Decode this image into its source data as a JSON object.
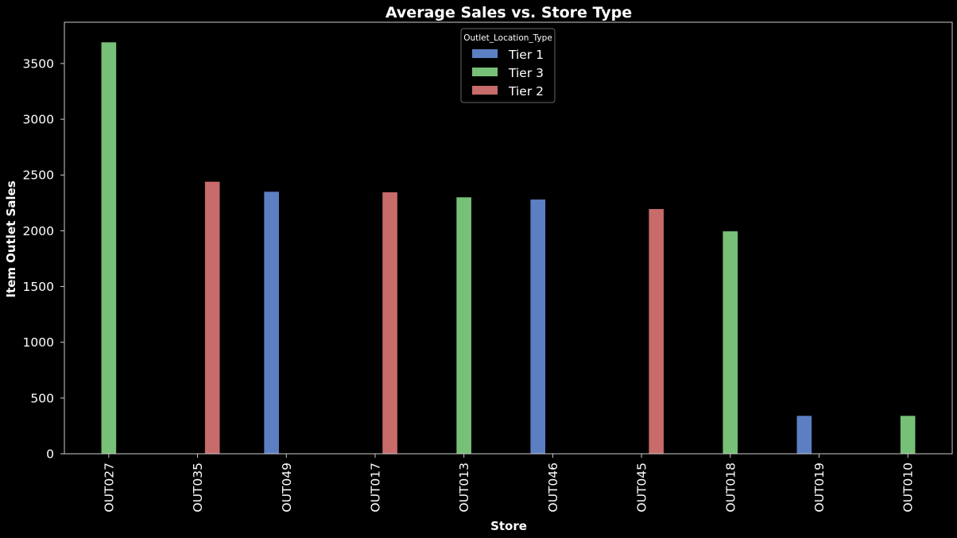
{
  "chart_data": {
    "type": "bar",
    "title": "Average Sales vs. Store Type",
    "xlabel": "Store",
    "ylabel": "Item Outlet Sales",
    "categories": [
      "OUT027",
      "OUT035",
      "OUT049",
      "OUT017",
      "OUT013",
      "OUT046",
      "OUT045",
      "OUT018",
      "OUT019",
      "OUT010"
    ],
    "ylim": [
      0,
      3870
    ],
    "yticks": [
      0,
      500,
      1000,
      1500,
      2000,
      2500,
      3000,
      3500
    ],
    "grid": false,
    "legend": {
      "title": "Outlet_Location_Type",
      "position": "top-center"
    },
    "series": [
      {
        "name": "Tier 1",
        "color": "#5c7fc4",
        "values": [
          null,
          null,
          2350,
          null,
          null,
          2280,
          null,
          null,
          340,
          null
        ]
      },
      {
        "name": "Tier 3",
        "color": "#77c077",
        "values": [
          3690,
          null,
          null,
          null,
          2300,
          null,
          null,
          1995,
          null,
          340
        ]
      },
      {
        "name": "Tier 2",
        "color": "#c76b6b",
        "values": [
          null,
          2440,
          null,
          2345,
          null,
          null,
          2195,
          null,
          null,
          null
        ]
      }
    ]
  }
}
